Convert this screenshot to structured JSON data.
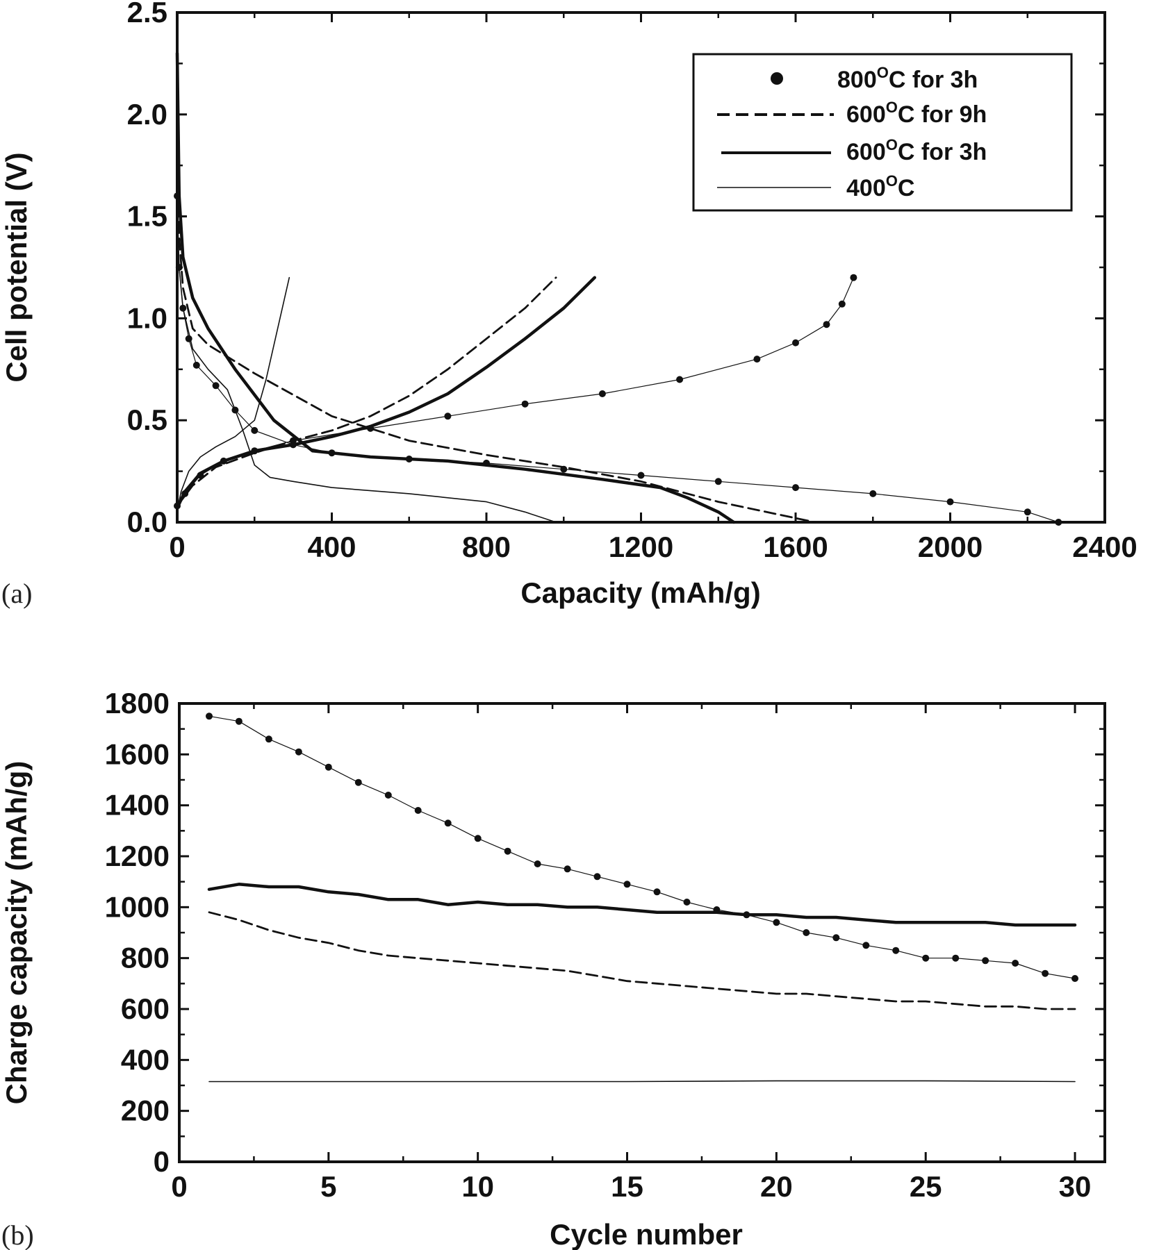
{
  "chart_data": [
    {
      "type": "line",
      "panel_label": "(a)",
      "xlabel": "Capacity (mAh/g)",
      "ylabel": "Cell potential (V)",
      "xlim": [
        0,
        2400
      ],
      "ylim": [
        0,
        2.5
      ],
      "xticks": [
        "0",
        "400",
        "800",
        "1200",
        "1600",
        "2000",
        "2400"
      ],
      "yticks": [
        "0.0",
        "0.5",
        "1.0",
        "1.5",
        "2.0",
        "2.5"
      ],
      "grid": false,
      "legend_position": "top-right",
      "legend": [
        {
          "temp": "800",
          "sup": "O",
          "rest": "C for 3h",
          "style": "dots"
        },
        {
          "temp": "600",
          "sup": "O",
          "rest": "C for 9h",
          "style": "dashed"
        },
        {
          "temp": "600",
          "sup": "O",
          "rest": "C for 3h",
          "style": "thick"
        },
        {
          "temp": "400",
          "sup": "O",
          "rest": "C",
          "style": "thin"
        }
      ],
      "series": [
        {
          "style": "dots",
          "x": [
            0,
            5,
            15,
            30,
            50,
            100,
            150,
            200,
            300,
            400,
            600,
            800,
            1000,
            1200,
            1400,
            1600,
            1800,
            2000,
            2200,
            2280
          ],
          "y": [
            1.6,
            1.25,
            1.05,
            0.9,
            0.77,
            0.67,
            0.55,
            0.45,
            0.38,
            0.34,
            0.31,
            0.29,
            0.26,
            0.23,
            0.2,
            0.17,
            0.14,
            0.1,
            0.05,
            0.0
          ]
        },
        {
          "style": "dots",
          "x": [
            0,
            20,
            60,
            120,
            200,
            300,
            500,
            700,
            900,
            1100,
            1300,
            1500,
            1600,
            1680,
            1720,
            1750
          ],
          "y": [
            0.08,
            0.14,
            0.23,
            0.3,
            0.35,
            0.4,
            0.46,
            0.52,
            0.58,
            0.63,
            0.7,
            0.8,
            0.88,
            0.97,
            1.07,
            1.2
          ]
        },
        {
          "style": "dashed",
          "x": [
            0,
            5,
            15,
            40,
            80,
            200,
            400,
            600,
            800,
            1000,
            1200,
            1400,
            1600,
            1650
          ],
          "y": [
            1.8,
            1.4,
            1.15,
            0.95,
            0.87,
            0.73,
            0.52,
            0.4,
            0.33,
            0.27,
            0.2,
            0.1,
            0.02,
            0.0
          ]
        },
        {
          "style": "dashed",
          "x": [
            0,
            40,
            100,
            200,
            300,
            400,
            500,
            600,
            700,
            800,
            900,
            980
          ],
          "y": [
            0.08,
            0.18,
            0.27,
            0.34,
            0.4,
            0.45,
            0.52,
            0.62,
            0.75,
            0.9,
            1.05,
            1.2
          ]
        },
        {
          "style": "thick",
          "x": [
            0,
            5,
            15,
            40,
            80,
            150,
            250,
            350,
            500,
            700,
            900,
            1100,
            1250,
            1320,
            1400,
            1440
          ],
          "y": [
            2.3,
            1.6,
            1.3,
            1.1,
            0.95,
            0.75,
            0.5,
            0.35,
            0.32,
            0.3,
            0.26,
            0.21,
            0.17,
            0.12,
            0.05,
            0.0
          ]
        },
        {
          "style": "thick",
          "x": [
            0,
            20,
            60,
            120,
            200,
            300,
            400,
            500,
            600,
            700,
            800,
            900,
            1000,
            1080
          ],
          "y": [
            0.07,
            0.15,
            0.24,
            0.3,
            0.35,
            0.38,
            0.42,
            0.47,
            0.54,
            0.63,
            0.76,
            0.9,
            1.05,
            1.2
          ]
        },
        {
          "style": "thin",
          "x": [
            0,
            5,
            15,
            40,
            80,
            130,
            170,
            200,
            240,
            300,
            400,
            600,
            800,
            900,
            980
          ],
          "y": [
            1.55,
            1.25,
            1.05,
            0.85,
            0.75,
            0.65,
            0.45,
            0.28,
            0.22,
            0.2,
            0.17,
            0.14,
            0.1,
            0.05,
            0.0
          ]
        },
        {
          "style": "thin",
          "x": [
            0,
            10,
            30,
            60,
            100,
            150,
            200,
            230,
            260,
            290
          ],
          "y": [
            0.06,
            0.15,
            0.25,
            0.32,
            0.37,
            0.42,
            0.5,
            0.7,
            0.95,
            1.2
          ]
        }
      ]
    },
    {
      "type": "line",
      "panel_label": "(b)",
      "xlabel": "Cycle number",
      "ylabel": "Charge capacity (mAh/g)",
      "xlim": [
        0,
        31
      ],
      "ylim": [
        0,
        1800
      ],
      "xticks": [
        "0",
        "5",
        "10",
        "15",
        "20",
        "25",
        "30"
      ],
      "yticks": [
        "0",
        "200",
        "400",
        "600",
        "800",
        "1000",
        "1200",
        "1400",
        "1600",
        "1800"
      ],
      "grid": false,
      "series": [
        {
          "style": "dots",
          "x": [
            1,
            2,
            3,
            4,
            5,
            6,
            7,
            8,
            9,
            10,
            11,
            12,
            13,
            14,
            15,
            16,
            17,
            18,
            19,
            20,
            21,
            22,
            23,
            24,
            25,
            26,
            27,
            28,
            29,
            30
          ],
          "y": [
            1750,
            1730,
            1660,
            1610,
            1550,
            1490,
            1440,
            1380,
            1330,
            1270,
            1220,
            1170,
            1150,
            1120,
            1090,
            1060,
            1020,
            990,
            970,
            940,
            900,
            880,
            850,
            830,
            800,
            800,
            790,
            780,
            740,
            720
          ]
        },
        {
          "style": "thick",
          "x": [
            1,
            2,
            3,
            4,
            5,
            6,
            7,
            8,
            9,
            10,
            11,
            12,
            13,
            14,
            15,
            16,
            17,
            18,
            19,
            20,
            21,
            22,
            23,
            24,
            25,
            26,
            27,
            28,
            29,
            30
          ],
          "y": [
            1070,
            1090,
            1080,
            1080,
            1060,
            1050,
            1030,
            1030,
            1010,
            1020,
            1010,
            1010,
            1000,
            1000,
            990,
            980,
            980,
            980,
            970,
            970,
            960,
            960,
            950,
            940,
            940,
            940,
            940,
            930,
            930,
            930
          ]
        },
        {
          "style": "dashed",
          "x": [
            1,
            2,
            3,
            4,
            5,
            6,
            7,
            8,
            9,
            10,
            11,
            12,
            13,
            14,
            15,
            16,
            17,
            18,
            19,
            20,
            21,
            22,
            23,
            24,
            25,
            26,
            27,
            28,
            29,
            30
          ],
          "y": [
            980,
            950,
            910,
            880,
            860,
            830,
            810,
            800,
            790,
            780,
            770,
            760,
            750,
            730,
            710,
            700,
            690,
            680,
            670,
            660,
            660,
            650,
            640,
            630,
            630,
            620,
            610,
            610,
            600,
            600
          ]
        },
        {
          "style": "thin",
          "x": [
            1,
            5,
            10,
            15,
            20,
            25,
            30
          ],
          "y": [
            315,
            315,
            315,
            315,
            318,
            318,
            315
          ]
        }
      ]
    }
  ]
}
